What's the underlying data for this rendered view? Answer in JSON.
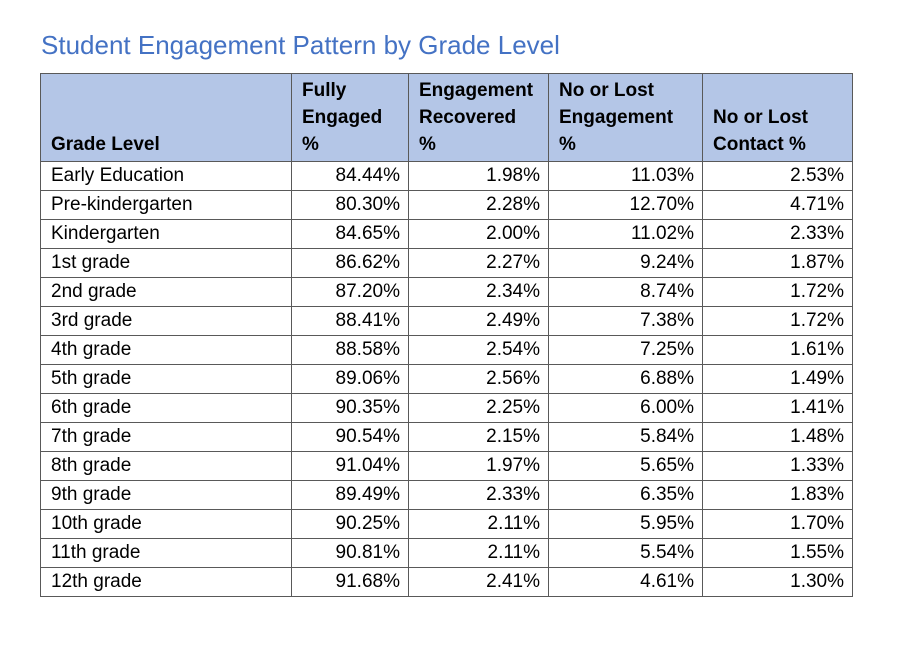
{
  "title": "Student Engagement Pattern by Grade Level",
  "chart_data": {
    "type": "table",
    "title": "Student Engagement Pattern by Grade Level",
    "columns": [
      {
        "key": "grade",
        "label": "Grade Level",
        "lines": [
          "Grade Level"
        ]
      },
      {
        "key": "fully_engaged",
        "label": "Fully Engaged %",
        "lines": [
          "Fully",
          "Engaged",
          "%"
        ]
      },
      {
        "key": "recovered",
        "label": "Engagement Recovered %",
        "lines": [
          "Engagement",
          "Recovered",
          "%"
        ]
      },
      {
        "key": "lost_engagement",
        "label": "No or Lost Engagement %",
        "lines": [
          "No or Lost",
          "Engagement",
          "%"
        ]
      },
      {
        "key": "lost_contact",
        "label": "No or Lost Contact %",
        "lines": [
          "No or Lost",
          "Contact %"
        ]
      }
    ],
    "rows": [
      [
        "Early Education",
        "84.44%",
        "1.98%",
        "11.03%",
        "2.53%"
      ],
      [
        "Pre-kindergarten",
        "80.30%",
        "2.28%",
        "12.70%",
        "4.71%"
      ],
      [
        "Kindergarten",
        "84.65%",
        "2.00%",
        "11.02%",
        "2.33%"
      ],
      [
        "1st grade",
        "86.62%",
        "2.27%",
        "9.24%",
        "1.87%"
      ],
      [
        "2nd grade",
        "87.20%",
        "2.34%",
        "8.74%",
        "1.72%"
      ],
      [
        "3rd grade",
        "88.41%",
        "2.49%",
        "7.38%",
        "1.72%"
      ],
      [
        "4th grade",
        "88.58%",
        "2.54%",
        "7.25%",
        "1.61%"
      ],
      [
        "5th grade",
        "89.06%",
        "2.56%",
        "6.88%",
        "1.49%"
      ],
      [
        "6th grade",
        "90.35%",
        "2.25%",
        "6.00%",
        "1.41%"
      ],
      [
        "7th grade",
        "90.54%",
        "2.15%",
        "5.84%",
        "1.48%"
      ],
      [
        "8th grade",
        "91.04%",
        "1.97%",
        "5.65%",
        "1.33%"
      ],
      [
        "9th grade",
        "89.49%",
        "2.33%",
        "6.35%",
        "1.83%"
      ],
      [
        "10th grade",
        "90.25%",
        "2.11%",
        "5.95%",
        "1.70%"
      ],
      [
        "11th grade",
        "90.81%",
        "2.11%",
        "5.54%",
        "1.55%"
      ],
      [
        "12th grade",
        "91.68%",
        "2.41%",
        "4.61%",
        "1.30%"
      ]
    ]
  },
  "colors": {
    "title": "#4472C4",
    "header_bg": "#B4C6E7",
    "border": "#595959",
    "text": "#000000"
  }
}
